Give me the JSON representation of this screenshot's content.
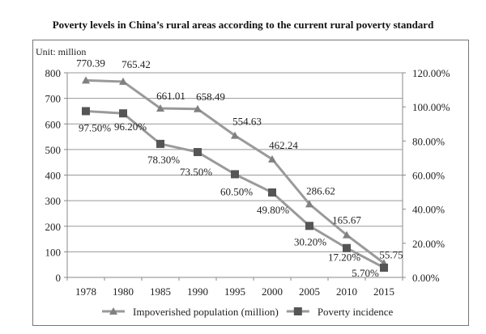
{
  "chart_data": {
    "type": "line",
    "title": "Poverty levels in China’s rural areas according to the current rural poverty standard",
    "unit_label": "Unit: million",
    "categories": [
      "1978",
      "1980",
      "1985",
      "1990",
      "1995",
      "2000",
      "2005",
      "2010",
      "2015"
    ],
    "y_left": {
      "min": 0,
      "max": 800,
      "ticks": [
        "0",
        "100",
        "200",
        "300",
        "400",
        "500",
        "600",
        "700",
        "800"
      ]
    },
    "y_right": {
      "min": 0,
      "max": 120,
      "ticks": [
        "0.00%",
        "20.00%",
        "40.00%",
        "60.00%",
        "80.00%",
        "100.00%",
        "120.00%"
      ]
    },
    "grid": true,
    "legend_position": "bottom",
    "series": [
      {
        "name": "Impoverished population (million)",
        "axis": "left",
        "marker": "triangle",
        "color": "#9a9a9a",
        "marker_color": "#808080",
        "values": [
          770.39,
          765.42,
          661.01,
          658.49,
          554.63,
          462.24,
          286.62,
          165.67,
          55.75
        ],
        "labels": [
          "770.39",
          "765.42",
          "661.01",
          "658.49",
          "554.63",
          "462.24",
          "286.62",
          "165.67",
          "55.75"
        ]
      },
      {
        "name": "Poverty incidence",
        "axis": "right",
        "marker": "square",
        "color": "#9a9a9a",
        "marker_color": "#555555",
        "values": [
          97.5,
          96.2,
          78.3,
          73.5,
          60.5,
          49.8,
          30.2,
          17.2,
          5.7
        ],
        "labels": [
          "97.50%",
          "96.20%",
          "78.30%",
          "73.50%",
          "60.50%",
          "49.80%",
          "30.20%",
          "17.20%",
          "5.70%"
        ]
      }
    ]
  }
}
